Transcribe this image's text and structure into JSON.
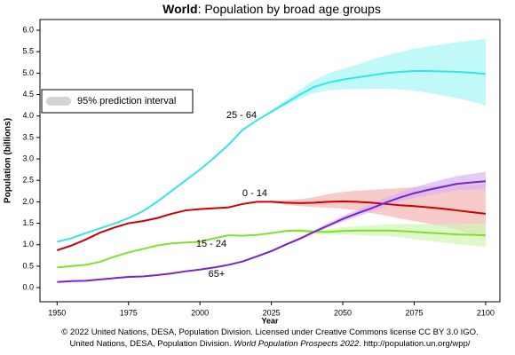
{
  "chart_data": {
    "type": "line",
    "title": [
      "World",
      ": Population by broad age groups"
    ],
    "y_label": "Population (billions)",
    "x_label": "Year",
    "legend": {
      "label": "95% prediction interval",
      "color": "#d3d3d3",
      "position": "upper left"
    },
    "footer": [
      [
        "© 2022 United Nations, DESA, Population Division. Licensed under Creative Commons license CC BY 3.0 IGO."
      ],
      [
        "United Nations, DESA, Population Division. ",
        "World Population Prospects 2022",
        ". http://population.un.org/wpp/"
      ]
    ],
    "xlim": [
      1944,
      2105
    ],
    "xticks": [
      1950,
      1975,
      2000,
      2025,
      2050,
      2075,
      2100
    ],
    "ylim": [
      -0.33,
      6.25
    ],
    "yticks": [
      {
        "value": 0,
        "label": "0.0"
      },
      0.5,
      {
        "value": 1,
        "label": "1.0"
      },
      1.5,
      {
        "value": 2,
        "label": "2.0"
      },
      2.5,
      {
        "value": 3,
        "label": "3.0"
      },
      3.5,
      {
        "value": 4,
        "label": "4.0"
      },
      4.5,
      {
        "value": 5,
        "label": "5.0"
      },
      5.5,
      {
        "value": 6,
        "label": "6.0"
      }
    ],
    "x": [
      1950,
      1955,
      1960,
      1965,
      1970,
      1975,
      1980,
      1985,
      1990,
      1995,
      2000,
      2005,
      2010,
      2015,
      2020,
      2025,
      2030,
      2035,
      2040,
      2045,
      2050,
      2055,
      2060,
      2065,
      2070,
      2075,
      2080,
      2085,
      2090,
      2095,
      2100
    ],
    "series": [
      {
        "name": "25 - 64",
        "color": "#33e6e6",
        "band_color": "#a6f5f5",
        "values": [
          1.07,
          1.15,
          1.27,
          1.38,
          1.49,
          1.62,
          1.78,
          2.0,
          2.25,
          2.5,
          2.75,
          3.03,
          3.33,
          3.68,
          3.9,
          4.1,
          4.3,
          4.5,
          4.68,
          4.78,
          4.85,
          4.9,
          4.95,
          5.0,
          5.03,
          5.05,
          5.05,
          5.04,
          5.03,
          5.01,
          4.98
        ],
        "upper": [
          null,
          null,
          null,
          null,
          null,
          null,
          null,
          null,
          null,
          null,
          null,
          null,
          null,
          null,
          3.9,
          4.13,
          4.37,
          4.61,
          4.84,
          4.99,
          5.1,
          5.2,
          5.31,
          5.41,
          5.49,
          5.57,
          5.62,
          5.67,
          5.72,
          5.76,
          5.8
        ],
        "lower": [
          null,
          null,
          null,
          null,
          null,
          null,
          null,
          null,
          null,
          null,
          null,
          null,
          null,
          null,
          3.9,
          4.07,
          4.24,
          4.4,
          4.54,
          4.6,
          4.62,
          4.63,
          4.63,
          4.64,
          4.62,
          4.59,
          4.54,
          4.48,
          4.42,
          4.34,
          4.25
        ]
      },
      {
        "name": "0 - 14",
        "color": "#cc0000",
        "band_color": "#f5b5b5",
        "values": [
          0.87,
          0.98,
          1.12,
          1.28,
          1.4,
          1.5,
          1.55,
          1.62,
          1.72,
          1.8,
          1.83,
          1.85,
          1.87,
          1.95,
          2.0,
          2.0,
          1.98,
          1.97,
          1.98,
          2.0,
          2.01,
          2.0,
          1.98,
          1.95,
          1.92,
          1.9,
          1.87,
          1.84,
          1.8,
          1.76,
          1.72
        ],
        "upper": [
          null,
          null,
          null,
          null,
          null,
          null,
          null,
          null,
          null,
          null,
          null,
          null,
          null,
          null,
          2.0,
          2.03,
          2.04,
          2.06,
          2.11,
          2.18,
          2.23,
          2.26,
          2.28,
          2.3,
          2.32,
          2.34,
          2.36,
          2.38,
          2.39,
          2.4,
          2.42
        ],
        "lower": [
          null,
          null,
          null,
          null,
          null,
          null,
          null,
          null,
          null,
          null,
          null,
          null,
          null,
          null,
          2.0,
          1.98,
          1.93,
          1.9,
          1.88,
          1.86,
          1.84,
          1.8,
          1.74,
          1.68,
          1.61,
          1.55,
          1.49,
          1.42,
          1.34,
          1.25,
          1.17
        ]
      },
      {
        "name": "15 - 24",
        "color": "#7fe030",
        "band_color": "#d2f5b4",
        "values": [
          0.47,
          0.5,
          0.53,
          0.6,
          0.72,
          0.82,
          0.9,
          0.98,
          1.03,
          1.05,
          1.07,
          1.15,
          1.22,
          1.21,
          1.23,
          1.27,
          1.32,
          1.33,
          1.3,
          1.3,
          1.32,
          1.33,
          1.33,
          1.33,
          1.32,
          1.3,
          1.28,
          1.26,
          1.24,
          1.23,
          1.22
        ],
        "upper": [
          null,
          null,
          null,
          null,
          null,
          null,
          null,
          null,
          null,
          null,
          null,
          null,
          null,
          null,
          1.23,
          1.28,
          1.34,
          1.37,
          1.35,
          1.37,
          1.41,
          1.43,
          1.45,
          1.47,
          1.48,
          1.48,
          1.48,
          1.48,
          1.48,
          1.49,
          1.5
        ],
        "lower": [
          null,
          null,
          null,
          null,
          null,
          null,
          null,
          null,
          null,
          null,
          null,
          null,
          null,
          null,
          1.23,
          1.26,
          1.3,
          1.29,
          1.25,
          1.23,
          1.24,
          1.23,
          1.21,
          1.2,
          1.17,
          1.13,
          1.09,
          1.05,
          1.01,
          0.98,
          0.95
        ]
      },
      {
        "name": "65+",
        "color": "#7a22cc",
        "band_color": "#d6b5f0",
        "values": [
          0.13,
          0.15,
          0.16,
          0.19,
          0.22,
          0.25,
          0.26,
          0.29,
          0.33,
          0.38,
          0.42,
          0.47,
          0.53,
          0.61,
          0.73,
          0.85,
          1.0,
          1.14,
          1.3,
          1.45,
          1.6,
          1.73,
          1.85,
          1.98,
          2.1,
          2.2,
          2.28,
          2.35,
          2.42,
          2.45,
          2.48
        ],
        "upper": [
          null,
          null,
          null,
          null,
          null,
          null,
          null,
          null,
          null,
          null,
          null,
          null,
          null,
          null,
          0.73,
          0.86,
          1.02,
          1.17,
          1.34,
          1.51,
          1.67,
          1.81,
          1.95,
          2.09,
          2.22,
          2.34,
          2.43,
          2.52,
          2.6,
          2.65,
          2.7
        ],
        "lower": [
          null,
          null,
          null,
          null,
          null,
          null,
          null,
          null,
          null,
          null,
          null,
          null,
          null,
          null,
          0.73,
          0.84,
          0.99,
          1.12,
          1.27,
          1.41,
          1.54,
          1.66,
          1.77,
          1.89,
          2.0,
          2.09,
          2.15,
          2.21,
          2.27,
          2.28,
          2.3
        ]
      }
    ]
  }
}
